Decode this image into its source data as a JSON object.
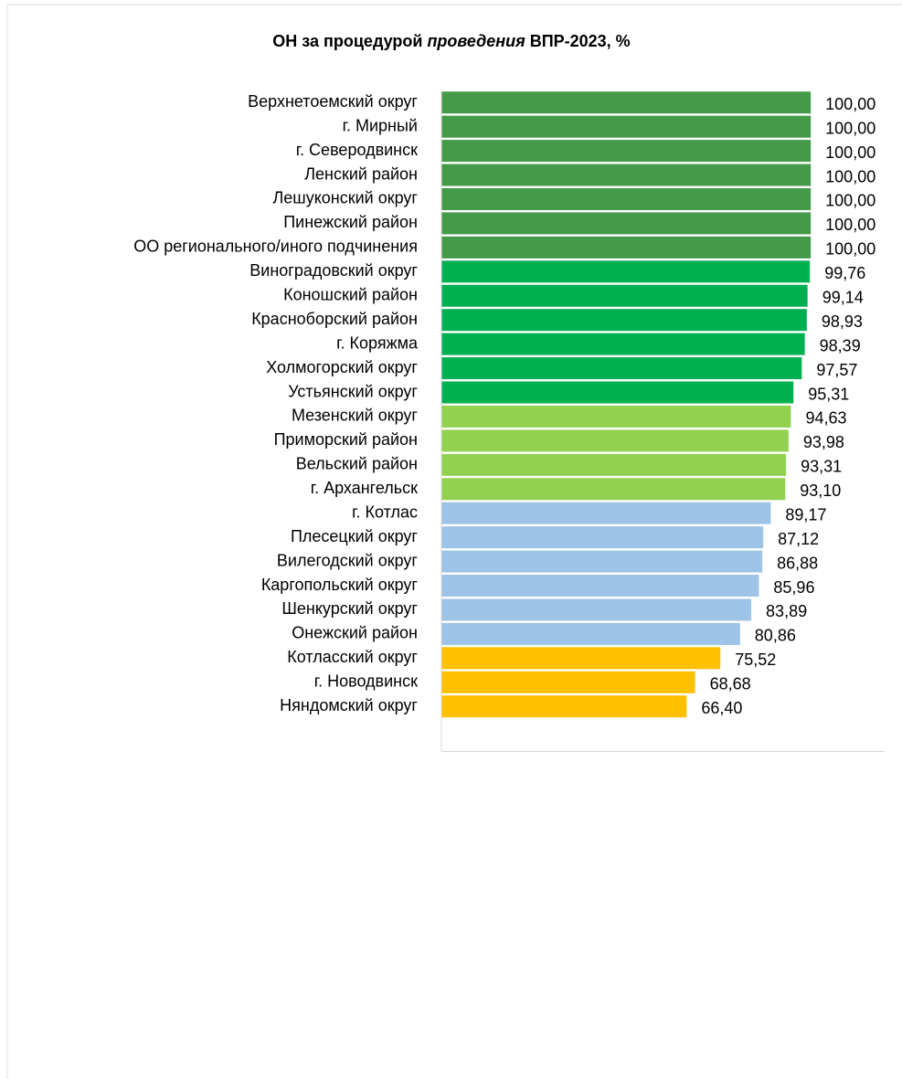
{
  "chart_data": {
    "type": "hbar",
    "title_parts": [
      "ОН за процедурой",
      "проведения",
      "ВПР-2023, %"
    ],
    "title_italic": [
      false,
      true,
      false
    ],
    "categories": [
      "Верхнетоемский округ",
      "г. Мирный",
      "г. Северодвинск",
      "Ленский район",
      "Лешуконский округ",
      "Пинежский район",
      "ОО регионального/иного подчинения",
      "Виноградовский округ",
      "Коношский район",
      "Красноборский район",
      "г. Коряжма",
      "Холмогорский округ",
      "Устьянский округ",
      "Мезенский округ",
      "Приморский район",
      "Вельский район",
      "г. Архангельск",
      "г. Котлас",
      "Плесецкий округ",
      "Вилегодский округ",
      "Каргопольский округ",
      "Шенкурский округ",
      "Онежский район",
      "Котласский округ",
      "г. Новодвинск",
      "Няндомский округ"
    ],
    "values": [
      100,
      100,
      100,
      100,
      100,
      100,
      100,
      99.76,
      99.14,
      98.93,
      98.39,
      97.57,
      95.31,
      94.63,
      93.98,
      93.31,
      93.1,
      89.17,
      87.12,
      86.88,
      85.96,
      83.89,
      80.86,
      75.52,
      68.68,
      66.4
    ],
    "value_labels": [
      "100,00",
      "100,00",
      "100,00",
      "100,00",
      "100,00",
      "100,00",
      "100,00",
      "99,76",
      "99,14",
      "98,93",
      "98,39",
      "97,57",
      "95,31",
      "94,63",
      "93,98",
      "93,31",
      "93,10",
      "89,17",
      "87,12",
      "86,88",
      "85,96",
      "83,89",
      "80,86",
      "75,52",
      "68,68",
      "66,40"
    ],
    "colors": [
      "#449a48",
      "#449a48",
      "#449a48",
      "#449a48",
      "#449a48",
      "#449a48",
      "#449a48",
      "#00b050",
      "#00b050",
      "#00b050",
      "#00b050",
      "#00b050",
      "#00b050",
      "#92d050",
      "#92d050",
      "#92d050",
      "#92d050",
      "#9dc3e6",
      "#9dc3e6",
      "#9dc3e6",
      "#9dc3e6",
      "#9dc3e6",
      "#9dc3e6",
      "#ffc000",
      "#ffc000",
      "#ffc000"
    ],
    "xlim": [
      0,
      120
    ]
  }
}
